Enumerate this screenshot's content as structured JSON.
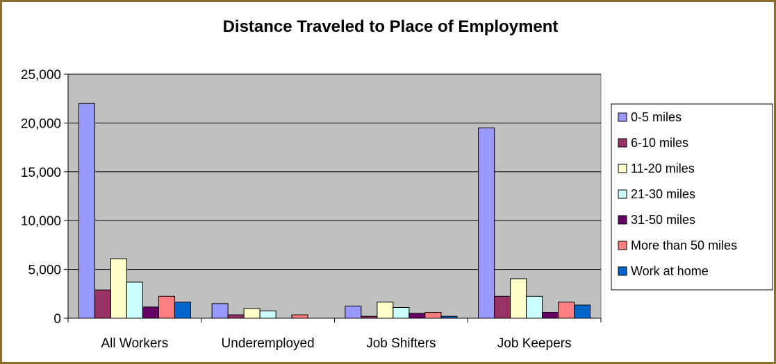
{
  "chart_data": {
    "type": "bar",
    "title": "Distance Traveled to Place of Employment",
    "xlabel": "",
    "ylabel": "",
    "ylim": [
      0,
      25000
    ],
    "yticks": [
      0,
      5000,
      10000,
      15000,
      20000,
      25000
    ],
    "ytick_labels": [
      "0",
      "5,000",
      "10,000",
      "15,000",
      "20,000",
      "25,000"
    ],
    "categories": [
      "All Workers",
      "Underemployed",
      "Job Shifters",
      "Job Keepers"
    ],
    "series": [
      {
        "name": "0-5 miles",
        "color": "#9999ff",
        "values": [
          22000,
          1500,
          1250,
          19500
        ]
      },
      {
        "name": "6-10 miles",
        "color": "#993366",
        "values": [
          2900,
          350,
          200,
          2250
        ]
      },
      {
        "name": "11-20 miles",
        "color": "#ffffcc",
        "values": [
          6100,
          1000,
          1650,
          4050
        ]
      },
      {
        "name": "21-30 miles",
        "color": "#ccffff",
        "values": [
          3700,
          750,
          1100,
          2250
        ]
      },
      {
        "name": "31-50 miles",
        "color": "#660066",
        "values": [
          1150,
          0,
          500,
          600
        ]
      },
      {
        "name": "More than 50 miles",
        "color": "#ff8080",
        "values": [
          2250,
          350,
          600,
          1650
        ]
      },
      {
        "name": "Work at home",
        "color": "#0066cc",
        "values": [
          1650,
          0,
          200,
          1350
        ]
      }
    ],
    "grid": true,
    "legend": "right",
    "plot_background": "#c0c0c0",
    "frame_color": "#8b6c2f"
  }
}
